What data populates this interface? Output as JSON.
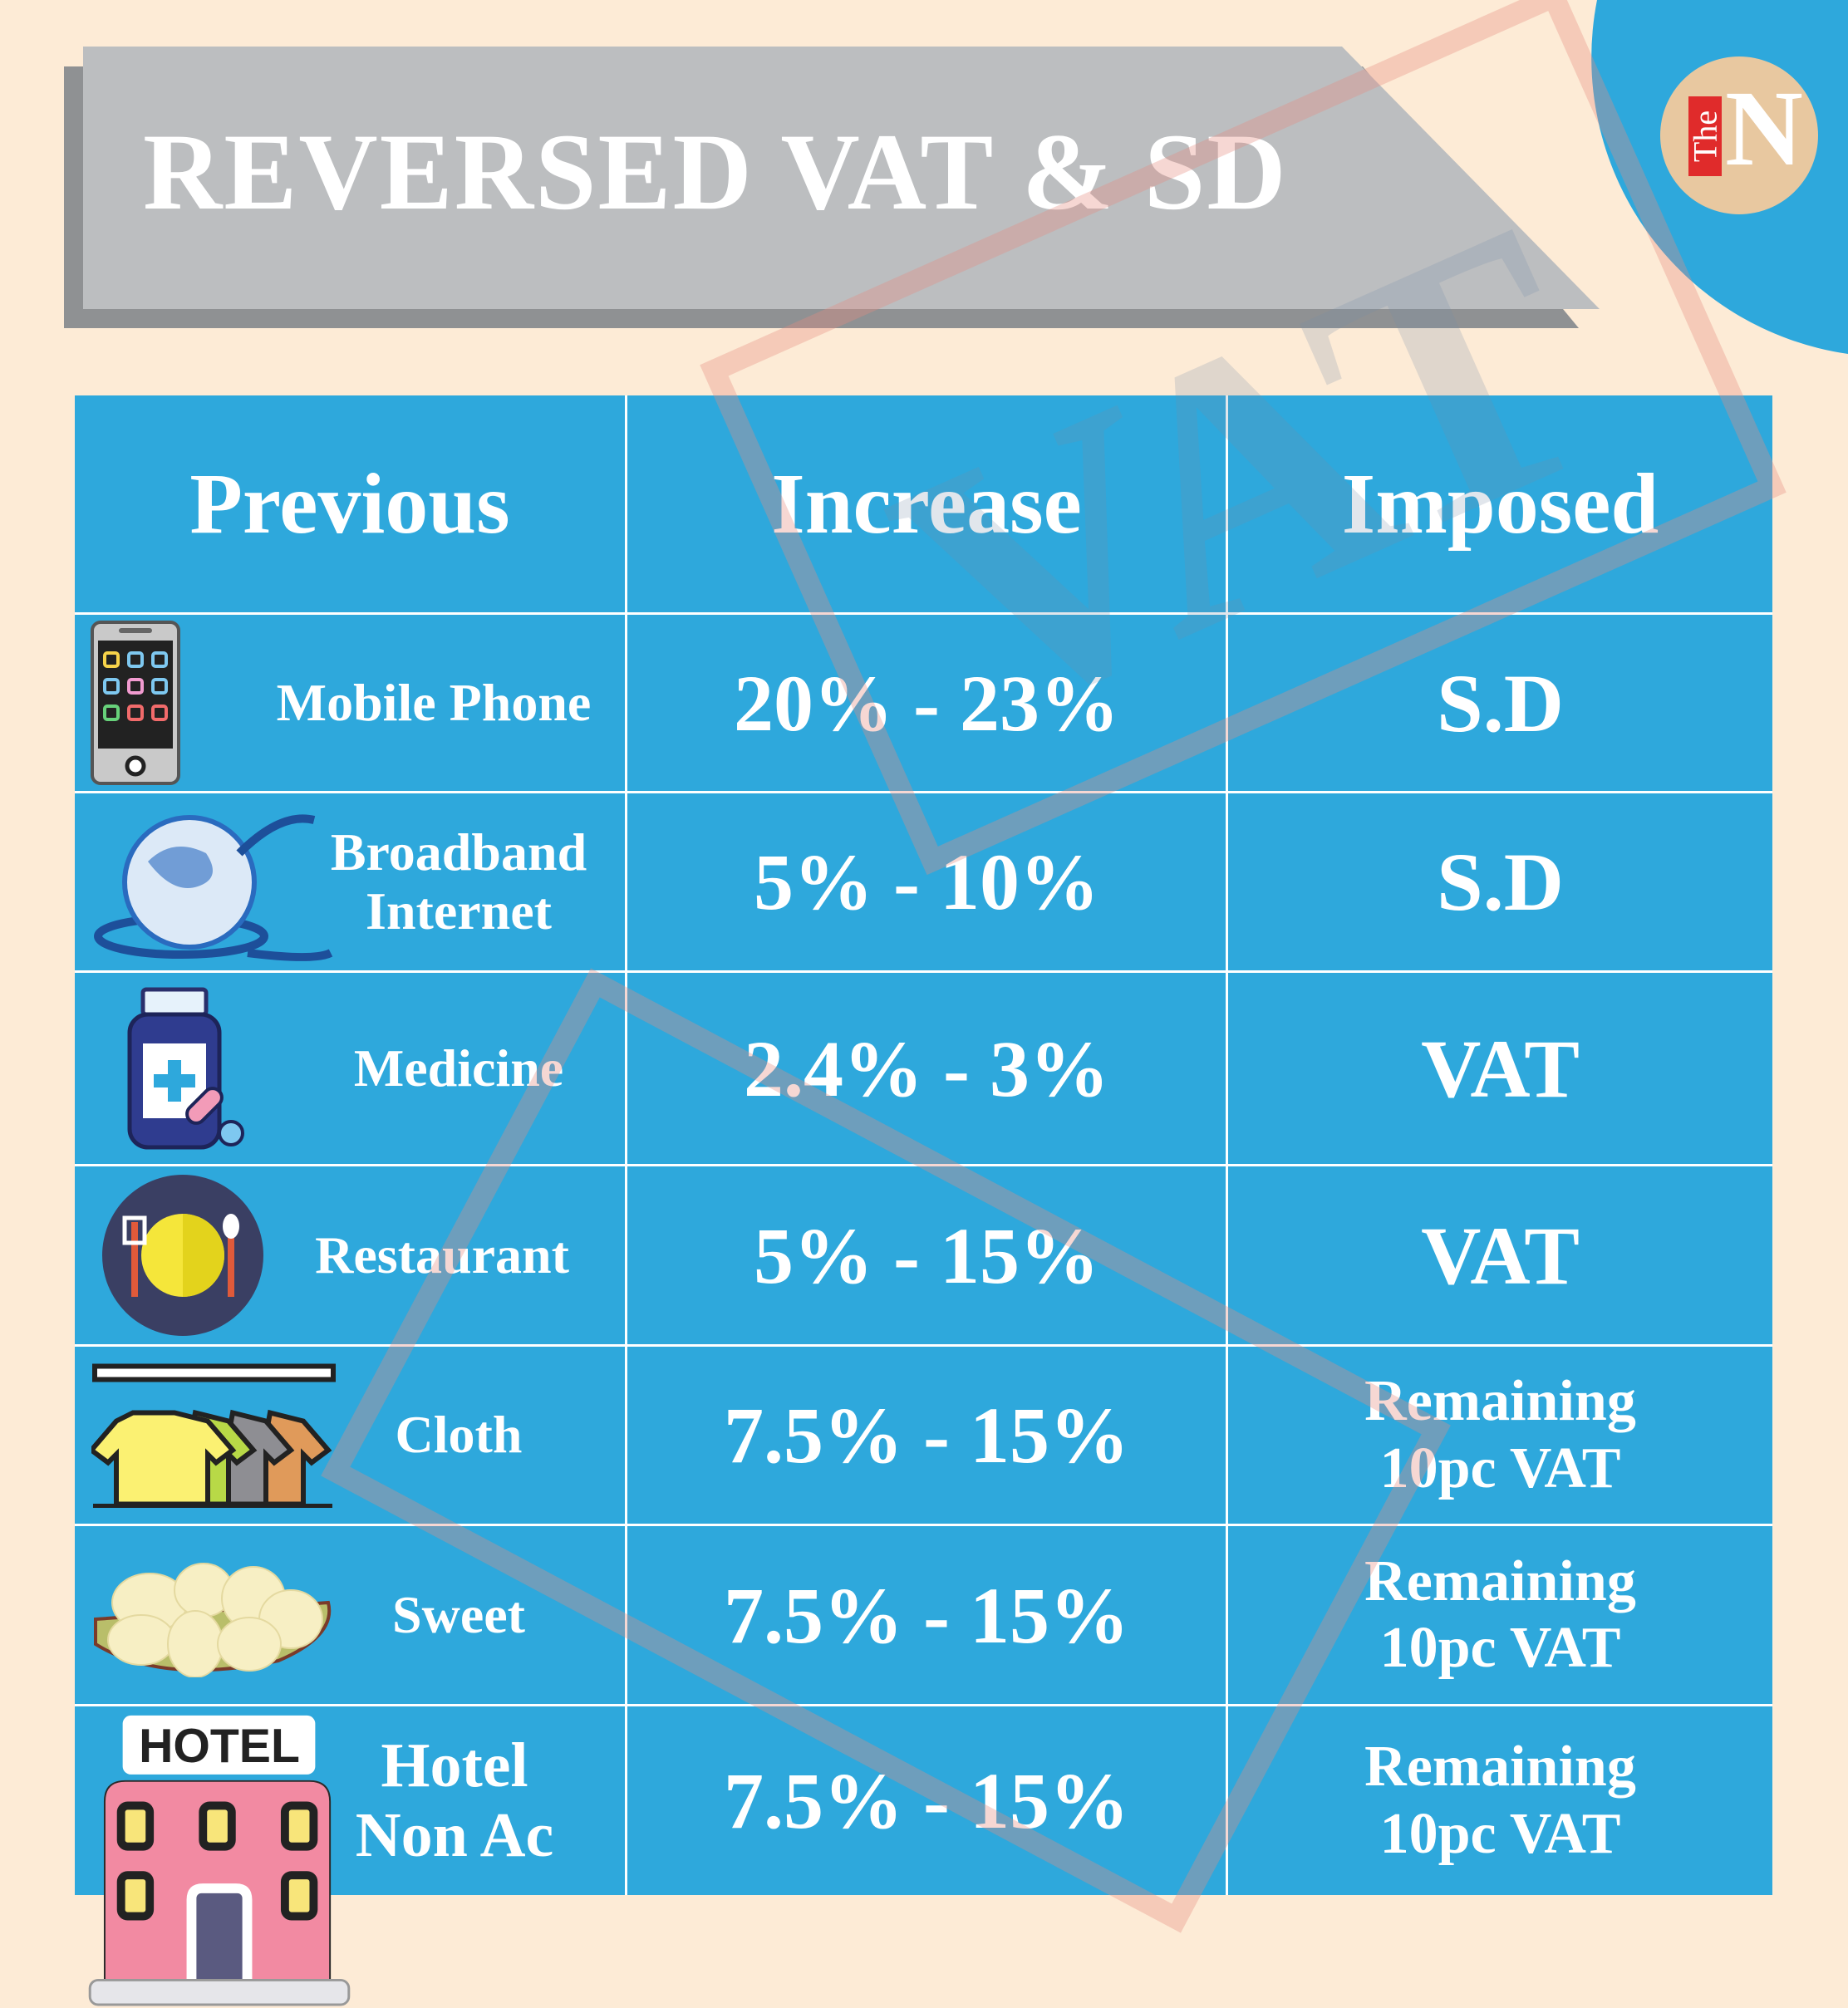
{
  "title": "REVERSED VAT & SD",
  "logo": {
    "the": "The",
    "n": "N"
  },
  "watermark": "VAT",
  "table": {
    "headers": [
      "Previous",
      "Increase",
      "Imposed"
    ],
    "rows": [
      {
        "item": "Mobile Phone",
        "increase": "20% - 23%",
        "imposed": "S.D",
        "icon": "mobile-phone-icon"
      },
      {
        "item_line1": "Broadband",
        "item_line2": "Internet",
        "increase": "5% - 10%",
        "imposed": "S.D",
        "icon": "globe-internet-icon"
      },
      {
        "item": "Medicine",
        "increase": "2.4% - 3%",
        "imposed": "VAT",
        "icon": "medicine-bottle-icon"
      },
      {
        "item": "Restaurant",
        "increase": "5% - 15%",
        "imposed": "VAT",
        "icon": "restaurant-plate-icon"
      },
      {
        "item": "Cloth",
        "increase": "7.5% - 15%",
        "imposed_line1": "Remaining",
        "imposed_line2": "10pc VAT",
        "icon": "clothes-rack-icon"
      },
      {
        "item": "Sweet",
        "increase": "7.5% - 15%",
        "imposed_line1": "Remaining",
        "imposed_line2": "10pc VAT",
        "icon": "sweets-plate-icon"
      },
      {
        "item_line1": "Hotel",
        "item_line2": "Non Ac",
        "increase": "7.5% - 15%",
        "imposed_line1": "Remaining",
        "imposed_line2": "10pc VAT",
        "icon": "hotel-icon"
      }
    ]
  },
  "hotel_sign": "HOTEL",
  "colors": {
    "background": "#fdebd6",
    "table_blue": "#2ea8dc",
    "banner_gray": "#bcbec0",
    "logo_red": "#e02b2b",
    "logo_tan": "#e8c8a0"
  }
}
